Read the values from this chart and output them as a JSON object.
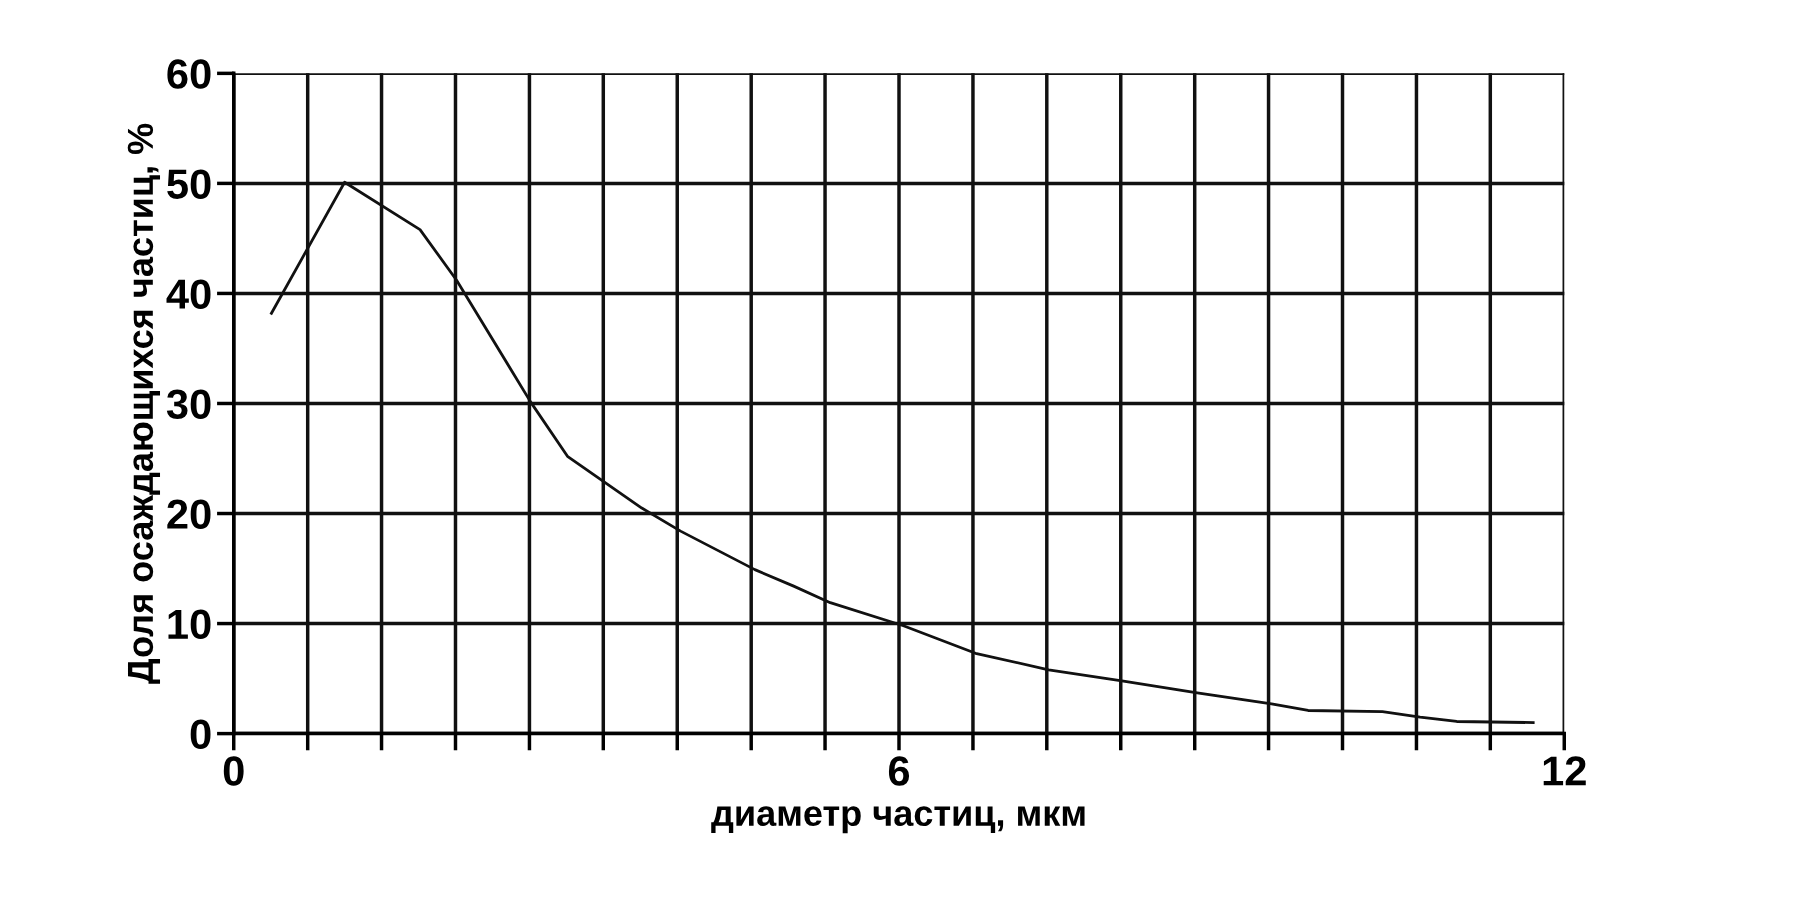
{
  "chart_data": {
    "type": "line",
    "xlabel": "диаметр частиц, мкм",
    "ylabel": "Доля осаждающихся частиц, %",
    "x": [
      0.34,
      1.0,
      1.68,
      2.01,
      2.68,
      3.01,
      3.68,
      4.03,
      4.7,
      5.05,
      5.38,
      6.04,
      6.69,
      7.35,
      8.01,
      8.69,
      9.36,
      9.69,
      10.36,
      10.7,
      11.03,
      11.72
    ],
    "series": [
      {
        "color": "#111111",
        "values": [
          38.2,
          50.1,
          45.8,
          41.2,
          30.1,
          25.2,
          20.5,
          18.4,
          14.9,
          13.4,
          11.9,
          9.8,
          7.3,
          5.8,
          4.8,
          3.7,
          2.7,
          2.1,
          2.0,
          1.5,
          1.1,
          1.0
        ]
      }
    ],
    "xlim": [
      0,
      12
    ],
    "ylim": [
      0,
      60
    ],
    "xticks": [
      0,
      {
        "value": 0.667,
        "label": null
      },
      {
        "value": 1.333,
        "label": null
      },
      {
        "value": 2,
        "label": null
      },
      {
        "value": 2.667,
        "label": null
      },
      {
        "value": 3.333,
        "label": null
      },
      {
        "value": 4,
        "label": null
      },
      {
        "value": 4.667,
        "label": null
      },
      {
        "value": 5.333,
        "label": null
      },
      6,
      {
        "value": 6.667,
        "label": null
      },
      {
        "value": 7.333,
        "label": null
      },
      {
        "value": 8,
        "label": null
      },
      {
        "value": 8.667,
        "label": null
      },
      {
        "value": 9.333,
        "label": null
      },
      {
        "value": 10,
        "label": null
      },
      {
        "value": 10.667,
        "label": null
      },
      {
        "value": 11.333,
        "label": null
      },
      12
    ],
    "yticks": [
      0,
      10,
      20,
      30,
      40,
      50,
      60
    ],
    "grid": true,
    "marker": "none",
    "line_style": "solid"
  }
}
